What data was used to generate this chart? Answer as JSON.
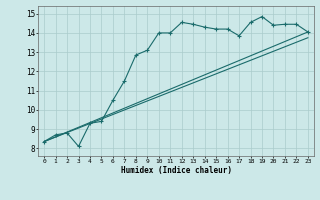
{
  "bg_color": "#cce8e8",
  "grid_color": "#aacccc",
  "line_color": "#1a6b6b",
  "xlabel": "Humidex (Indice chaleur)",
  "ylabel_ticks": [
    8,
    9,
    10,
    11,
    12,
    13,
    14,
    15
  ],
  "xlabel_ticks": [
    0,
    1,
    2,
    3,
    4,
    5,
    6,
    7,
    8,
    9,
    10,
    11,
    12,
    13,
    14,
    15,
    16,
    17,
    18,
    19,
    20,
    21,
    22,
    23
  ],
  "xlim": [
    -0.5,
    23.5
  ],
  "ylim": [
    7.6,
    15.4
  ],
  "curve1_x": [
    0,
    1,
    2,
    3,
    4,
    5,
    6,
    7,
    8,
    9,
    10,
    11,
    12,
    13,
    14,
    15,
    16,
    17,
    18,
    19,
    20,
    21,
    22,
    23
  ],
  "curve1_y": [
    8.35,
    8.7,
    8.8,
    8.1,
    9.3,
    9.4,
    10.5,
    11.5,
    12.85,
    13.1,
    14.0,
    14.0,
    14.55,
    14.45,
    14.3,
    14.2,
    14.2,
    13.85,
    14.55,
    14.85,
    14.4,
    14.45,
    14.45,
    14.05
  ],
  "curve2_x": [
    0,
    23
  ],
  "curve2_y": [
    8.35,
    14.05
  ],
  "curve3_x": [
    0,
    23
  ],
  "curve3_y": [
    8.35,
    13.75
  ]
}
